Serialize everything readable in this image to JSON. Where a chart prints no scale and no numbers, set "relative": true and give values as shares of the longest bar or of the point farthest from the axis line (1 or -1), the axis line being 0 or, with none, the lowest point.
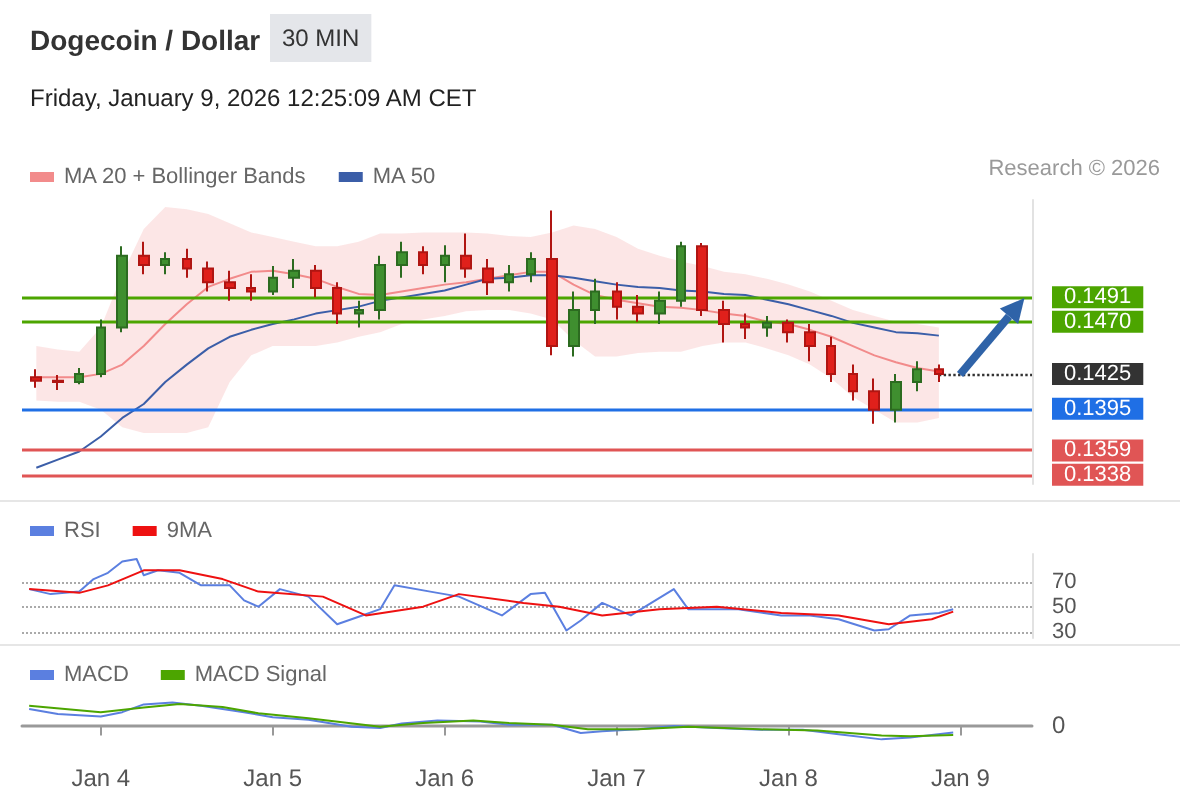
{
  "chart_data": [
    {
      "type": "candlestick",
      "title": "Dogecoin / Dollar",
      "subtitle": "Friday, January 9, 2026 12:25:09 AM CET",
      "annotations": [
        "30 MIN",
        "Research © 2026"
      ],
      "legend": "top left",
      "tick_labels": "y",
      "xlim": [
        "2026-01-03T13:00",
        "2026-01-09T10:00"
      ],
      "ylim": [
        0.133,
        0.1575
      ],
      "yticks": [
        0.1338,
        0.1359,
        0.1395,
        0.1425,
        {
          "value": 0.147,
          "label": "0.1470"
        },
        0.1491
      ],
      "x": [
        "2026-01-03T15:00",
        "2026-01-03T18:00",
        "2026-01-03T21:00",
        "2026-01-04T00:00",
        "2026-01-04T03:00",
        "2026-01-04T06:00",
        "2026-01-04T09:00",
        "2026-01-04T12:00",
        "2026-01-04T15:00",
        "2026-01-04T18:00",
        "2026-01-04T21:00",
        "2026-01-05T00:00",
        "2026-01-05T03:00",
        "2026-01-05T06:00",
        "2026-01-05T09:00",
        "2026-01-05T12:00",
        "2026-01-05T15:00",
        "2026-01-05T18:00",
        "2026-01-05T21:00",
        "2026-01-06T00:00",
        "2026-01-06T03:00",
        "2026-01-06T06:00",
        "2026-01-06T09:00",
        "2026-01-06T12:00",
        "2026-01-06T15:00",
        "2026-01-06T18:00",
        "2026-01-06T21:00",
        "2026-01-07T00:00",
        "2026-01-07T03:00",
        "2026-01-07T06:00",
        "2026-01-07T09:00",
        "2026-01-07T12:00",
        "2026-01-07T15:00",
        "2026-01-07T18:00",
        "2026-01-07T21:00",
        "2026-01-08T00:00",
        "2026-01-08T03:00",
        "2026-01-08T06:00",
        "2026-01-08T09:00",
        "2026-01-08T12:00",
        "2026-01-08T15:00",
        "2026-01-08T18:00",
        "2026-01-08T21:00"
      ],
      "ohlc": [
        [
          0.1422,
          0.1429,
          0.1413,
          0.1419
        ],
        [
          0.1419,
          0.1424,
          0.1411,
          0.1418
        ],
        [
          0.1418,
          0.143,
          0.1416,
          0.1425
        ],
        [
          0.1425,
          0.1472,
          0.1422,
          0.1465
        ],
        [
          0.1465,
          0.1535,
          0.1461,
          0.1527
        ],
        [
          0.1527,
          0.1539,
          0.1511,
          0.1519
        ],
        [
          0.1519,
          0.153,
          0.1511,
          0.1524
        ],
        [
          0.1524,
          0.1533,
          0.1508,
          0.1516
        ],
        [
          0.1516,
          0.1522,
          0.1496,
          0.1504
        ],
        [
          0.1504,
          0.1514,
          0.1488,
          0.1499
        ],
        [
          0.1499,
          0.1511,
          0.1488,
          0.1496
        ],
        [
          0.1496,
          0.1518,
          0.1493,
          0.1508
        ],
        [
          0.1508,
          0.1524,
          0.1499,
          0.1514
        ],
        [
          0.1514,
          0.1519,
          0.1491,
          0.1499
        ],
        [
          0.1499,
          0.1504,
          0.1468,
          0.1477
        ],
        [
          0.1477,
          0.1488,
          0.1465,
          0.148
        ],
        [
          0.148,
          0.1527,
          0.1472,
          0.1519
        ],
        [
          0.1519,
          0.1539,
          0.1508,
          0.153
        ],
        [
          0.153,
          0.1535,
          0.1511,
          0.1519
        ],
        [
          0.1519,
          0.1536,
          0.1504,
          0.1527
        ],
        [
          0.1527,
          0.1546,
          0.1508,
          0.1516
        ],
        [
          0.1516,
          0.1524,
          0.1493,
          0.1504
        ],
        [
          0.1504,
          0.1519,
          0.1496,
          0.1511
        ],
        [
          0.1511,
          0.153,
          0.1504,
          0.1524
        ],
        [
          0.1524,
          0.1566,
          0.1441,
          0.1449
        ],
        [
          0.1449,
          0.1496,
          0.144,
          0.148
        ],
        [
          0.148,
          0.1507,
          0.1468,
          0.1496
        ],
        [
          0.1496,
          0.1504,
          0.1472,
          0.1483
        ],
        [
          0.1483,
          0.1493,
          0.147,
          0.1477
        ],
        [
          0.1477,
          0.1496,
          0.1468,
          0.1488
        ],
        [
          0.1488,
          0.1539,
          0.1483,
          0.1535
        ],
        [
          0.1535,
          0.1538,
          0.1475,
          0.148
        ],
        [
          0.148,
          0.1488,
          0.1452,
          0.1468
        ],
        [
          0.1468,
          0.1477,
          0.1455,
          0.1465
        ],
        [
          0.1465,
          0.1475,
          0.1457,
          0.1469
        ],
        [
          0.1469,
          0.1472,
          0.1452,
          0.1461
        ],
        [
          0.1461,
          0.1468,
          0.1436,
          0.1449
        ],
        [
          0.1449,
          0.1457,
          0.1418,
          0.1425
        ],
        [
          0.1425,
          0.1433,
          0.1402,
          0.141
        ],
        [
          0.141,
          0.1421,
          0.1382,
          0.1394
        ],
        [
          0.1394,
          0.1425,
          0.1383,
          0.1418
        ],
        [
          0.1418,
          0.1436,
          0.141,
          0.1429
        ],
        [
          0.1429,
          0.1433,
          0.1418,
          0.1425
        ]
      ],
      "series": [
        {
          "name": "MA 20 + Bollinger Bands",
          "type": "line",
          "color": "#f28b8b",
          "values": [
            0.1422,
            0.1422,
            0.1422,
            0.1425,
            0.1433,
            0.1449,
            0.1468,
            0.1485,
            0.15,
            0.1507,
            0.1513,
            0.1514,
            0.1511,
            0.1507,
            0.15,
            0.1494,
            0.1493,
            0.1496,
            0.1499,
            0.1502,
            0.1504,
            0.1507,
            0.151,
            0.1513,
            0.1513,
            0.1502,
            0.1493,
            0.1489,
            0.1486,
            0.1483,
            0.1482,
            0.148,
            0.1477,
            0.1475,
            0.147,
            0.1468,
            0.1463,
            0.1457,
            0.1449,
            0.1441,
            0.1435,
            0.143,
            0.1427
          ],
          "upper": [
            0.1449,
            0.1446,
            0.1444,
            0.1465,
            0.1511,
            0.155,
            0.1569,
            0.1567,
            0.1563,
            0.1555,
            0.1547,
            0.1543,
            0.1539,
            0.1535,
            0.1535,
            0.1539,
            0.1546,
            0.1546,
            0.1547,
            0.1547,
            0.1547,
            0.1546,
            0.1544,
            0.1543,
            0.1547,
            0.1553,
            0.155,
            0.1543,
            0.1533,
            0.1527,
            0.1522,
            0.1518,
            0.1513,
            0.1511,
            0.1507,
            0.1502,
            0.1496,
            0.1488,
            0.148,
            0.1475,
            0.147,
            0.1468,
            0.1465
          ],
          "lower": [
            0.1402,
            0.1401,
            0.1401,
            0.1394,
            0.1379,
            0.1374,
            0.1374,
            0.1374,
            0.1379,
            0.1418,
            0.1441,
            0.1449,
            0.1449,
            0.1449,
            0.1452,
            0.1457,
            0.1461,
            0.1468,
            0.1472,
            0.1475,
            0.1479,
            0.148,
            0.148,
            0.1477,
            0.1472,
            0.1454,
            0.144,
            0.144,
            0.1443,
            0.1444,
            0.1444,
            0.1449,
            0.1452,
            0.1452,
            0.1447,
            0.1441,
            0.1433,
            0.1421,
            0.1405,
            0.1394,
            0.1383,
            0.1383,
            0.1387
          ]
        },
        {
          "name": "MA 50",
          "type": "line",
          "color": "#3b5ea8",
          "values": [
            0.1344,
            0.1351,
            0.1358,
            0.1371,
            0.1387,
            0.1399,
            0.1418,
            0.1433,
            0.1447,
            0.1457,
            0.1463,
            0.1468,
            0.1472,
            0.1477,
            0.148,
            0.1483,
            0.1488,
            0.1491,
            0.1494,
            0.1497,
            0.1502,
            0.1507,
            0.1508,
            0.151,
            0.151,
            0.1508,
            0.1505,
            0.1502,
            0.15,
            0.1499,
            0.1497,
            0.1496,
            0.1494,
            0.1493,
            0.1489,
            0.1485,
            0.148,
            0.1475,
            0.1469,
            0.1465,
            0.1461,
            0.146,
            0.1458
          ]
        }
      ],
      "ref_lines": [
        {
          "axis": "y",
          "value": 0.1491,
          "color": "#4ca500"
        },
        {
          "axis": "y",
          "value": 0.147,
          "color": "#4ca500"
        },
        {
          "axis": "y",
          "value": 0.1425,
          "color": "#333333",
          "line_style": "dotted"
        },
        {
          "axis": "y",
          "value": 0.1395,
          "color": "#1f6fe5"
        },
        {
          "axis": "y",
          "value": 0.1359,
          "color": "#e05555"
        },
        {
          "axis": "y",
          "value": 0.1338,
          "color": "#e05555"
        }
      ]
    },
    {
      "type": "line",
      "legend": "top left",
      "grid": "y",
      "tick_labels": "y",
      "xlim": [
        "2026-01-03T13:00",
        "2026-01-09T10:00"
      ],
      "ylim": [
        25,
        92
      ],
      "yticks": [
        30,
        50,
        70
      ],
      "series": [
        {
          "name": "RSI",
          "color": "#5b7fe0",
          "x": [
            "2026-01-03T14:00",
            "2026-01-03T17:00",
            "2026-01-03T21:00",
            "2026-01-03T23:00",
            "2026-01-04T01:00",
            "2026-01-04T03:00",
            "2026-01-04T05:00",
            "2026-01-04T06:00",
            "2026-01-04T08:00",
            "2026-01-04T11:00",
            "2026-01-04T14:00",
            "2026-01-04T18:00",
            "2026-01-04T20:00",
            "2026-01-04T22:00",
            "2026-01-05T01:00",
            "2026-01-05T05:00",
            "2026-01-05T09:00",
            "2026-01-05T12:00",
            "2026-01-05T15:00",
            "2026-01-05T17:00",
            "2026-01-05T22:00",
            "2026-01-06T02:00",
            "2026-01-06T08:00",
            "2026-01-06T12:00",
            "2026-01-06T14:00",
            "2026-01-06T17:00",
            "2026-01-06T19:00",
            "2026-01-06T22:00",
            "2026-01-07T02:00",
            "2026-01-07T08:00",
            "2026-01-07T10:00",
            "2026-01-07T17:00",
            "2026-01-07T23:00",
            "2026-01-08T03:00",
            "2026-01-08T07:00",
            "2026-01-08T12:00",
            "2026-01-08T14:00",
            "2026-01-08T17:00",
            "2026-01-08T21:00",
            "2026-01-08T23:00"
          ],
          "values": [
            64,
            60,
            62,
            72,
            77,
            86,
            88,
            75,
            79,
            77,
            67,
            67,
            55,
            50,
            64,
            58,
            36,
            42,
            48,
            67,
            62,
            58,
            43,
            60,
            61,
            31,
            39,
            53,
            43,
            64,
            48,
            48,
            43,
            43,
            40,
            31,
            32,
            43,
            45,
            48
          ]
        },
        {
          "name": "9MA",
          "color": "#ee1111",
          "x": [
            "2026-01-03T14:00",
            "2026-01-03T21:00",
            "2026-01-04T01:00",
            "2026-01-04T06:00",
            "2026-01-04T11:00",
            "2026-01-04T17:00",
            "2026-01-04T22:00",
            "2026-01-05T07:00",
            "2026-01-05T13:00",
            "2026-01-05T21:00",
            "2026-01-06T02:00",
            "2026-01-06T11:00",
            "2026-01-06T16:00",
            "2026-01-06T22:00",
            "2026-01-07T06:00",
            "2026-01-07T14:00",
            "2026-01-07T23:00",
            "2026-01-08T07:00",
            "2026-01-08T14:00",
            "2026-01-08T20:00",
            "2026-01-08T23:00"
          ],
          "values": [
            64,
            61,
            67,
            79,
            79,
            72,
            62,
            58,
            43,
            50,
            60,
            53,
            50,
            43,
            48,
            50,
            45,
            43,
            36,
            40,
            46
          ]
        }
      ]
    },
    {
      "type": "line",
      "legend": "top left",
      "tick_labels": "x",
      "relative": true,
      "annotations": [
        "0"
      ],
      "xlim": [
        "2026-01-03T13:00",
        "2026-01-09T10:00"
      ],
      "xticks": [
        {
          "value": "2026-01-04",
          "label": "Jan 4"
        },
        {
          "value": "2026-01-05",
          "label": "Jan 5"
        },
        {
          "value": "2026-01-06",
          "label": "Jan 6"
        },
        {
          "value": "2026-01-07",
          "label": "Jan 7"
        },
        {
          "value": "2026-01-08",
          "label": "Jan 8"
        },
        {
          "value": "2026-01-09",
          "label": "Jan 9"
        }
      ],
      "series": [
        {
          "name": "MACD",
          "color": "#5b7fe0",
          "x": [
            "2026-01-03T14:00",
            "2026-01-03T18:00",
            "2026-01-04T00:00",
            "2026-01-04T03:00",
            "2026-01-04T06:00",
            "2026-01-04T10:00",
            "2026-01-04T14:00",
            "2026-01-04T20:00",
            "2026-01-05T00:00",
            "2026-01-05T05:00",
            "2026-01-05T11:00",
            "2026-01-05T15:00",
            "2026-01-05T18:00",
            "2026-01-05T23:00",
            "2026-01-06T05:00",
            "2026-01-06T09:00",
            "2026-01-06T15:00",
            "2026-01-06T19:00",
            "2026-01-06T22:00",
            "2026-01-07T03:00",
            "2026-01-07T08:00",
            "2026-01-07T14:00",
            "2026-01-07T20:00",
            "2026-01-08T02:00",
            "2026-01-08T07:00",
            "2026-01-08T13:00",
            "2026-01-08T17:00",
            "2026-01-08T23:00"
          ],
          "values": [
            0.72,
            0.5,
            0.39,
            0.58,
            0.92,
            1,
            0.86,
            0.58,
            0.36,
            0.25,
            -0.06,
            -0.11,
            0.08,
            0.22,
            0.17,
            0.03,
            0.03,
            -0.33,
            -0.25,
            -0.17,
            -0.03,
            -0.11,
            -0.19,
            -0.19,
            -0.39,
            -0.61,
            -0.53,
            -0.31
          ]
        },
        {
          "name": "MACD Signal",
          "color": "#4ca500",
          "x": [
            "2026-01-03T14:00",
            "2026-01-04T00:00",
            "2026-01-04T06:00",
            "2026-01-04T11:00",
            "2026-01-04T17:00",
            "2026-01-04T22:00",
            "2026-01-05T05:00",
            "2026-01-05T15:00",
            "2026-01-05T21:00",
            "2026-01-06T04:00",
            "2026-01-06T09:00",
            "2026-01-06T15:00",
            "2026-01-06T20:00",
            "2026-01-07T03:00",
            "2026-01-07T10:00",
            "2026-01-07T20:00",
            "2026-01-08T04:00",
            "2026-01-08T13:00",
            "2026-01-08T17:00",
            "2026-01-08T23:00"
          ],
          "values": [
            0.86,
            0.58,
            0.78,
            0.94,
            0.81,
            0.53,
            0.31,
            -0.06,
            0.11,
            0.22,
            0.11,
            0.03,
            -0.17,
            -0.17,
            -0.06,
            -0.17,
            -0.22,
            -0.44,
            -0.47,
            -0.42
          ]
        }
      ]
    }
  ]
}
